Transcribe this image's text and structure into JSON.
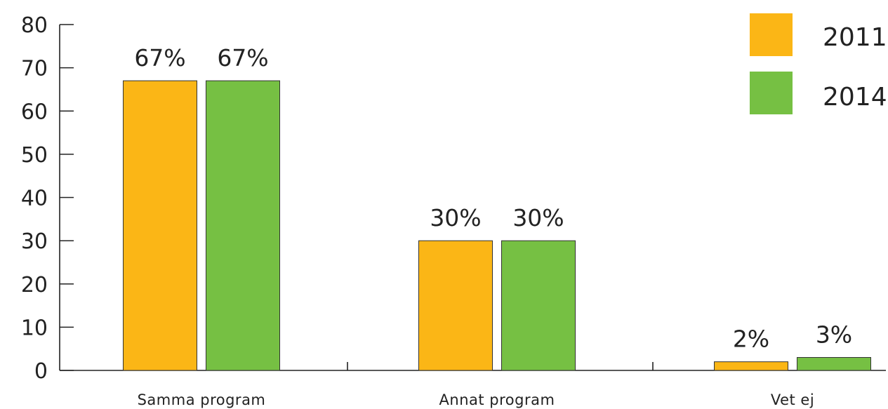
{
  "chart_data": {
    "type": "bar",
    "categories": [
      "Samma program",
      "Annat program",
      "Vet ej"
    ],
    "series": [
      {
        "name": "2011",
        "values": [
          67,
          30,
          2
        ],
        "labels": [
          "67%",
          "30%",
          "2%"
        ],
        "color": "#fbb616"
      },
      {
        "name": "2014",
        "values": [
          67,
          30,
          3
        ],
        "labels": [
          "67%",
          "30%",
          "3%"
        ],
        "color": "#76c043"
      }
    ],
    "yticks": [
      "0",
      "10",
      "20",
      "30",
      "40",
      "50",
      "60",
      "70",
      "80"
    ],
    "ylim": [
      0,
      80
    ],
    "grid": false,
    "legend_position": "top-right",
    "title": "",
    "xlabel": "",
    "ylabel": ""
  }
}
